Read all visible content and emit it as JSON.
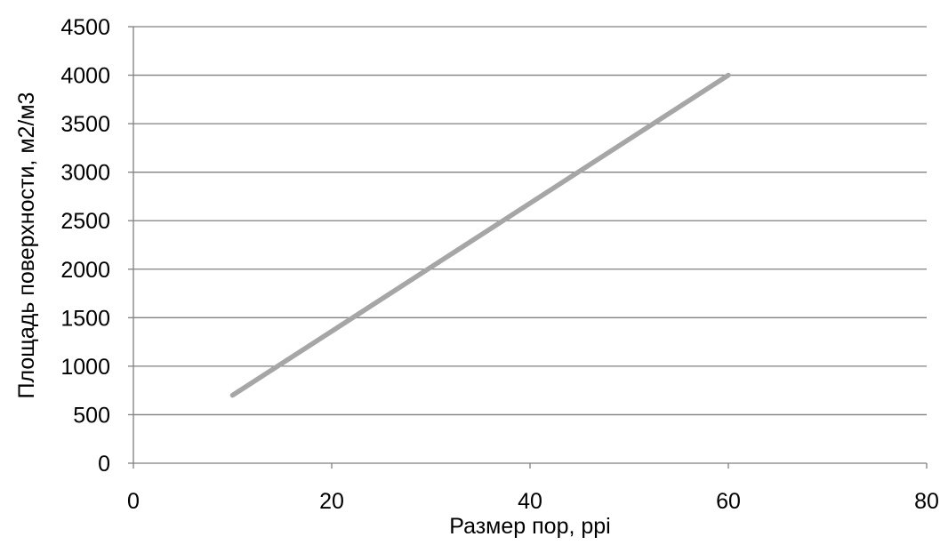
{
  "chart_data": {
    "type": "line",
    "title": "",
    "xlabel": "Размер пор, ppi",
    "ylabel": "Площадь поверхности, м2/м3",
    "xlim": [
      0,
      80
    ],
    "ylim": [
      0,
      4500
    ],
    "x_ticks": [
      "0",
      "20",
      "40",
      "60",
      "80"
    ],
    "y_ticks": [
      "0",
      "500",
      "1000",
      "1500",
      "2000",
      "2500",
      "3000",
      "3500",
      "4000",
      "4500"
    ],
    "grid": "horizontal",
    "legend": "none",
    "series": [
      {
        "color": "#a6a6a6",
        "points": [
          {
            "x": 10,
            "y": 700
          },
          {
            "x": 60,
            "y": 4000
          }
        ]
      }
    ],
    "colors": {
      "grid": "#808080",
      "axis": "#808080",
      "text": "#000000"
    }
  }
}
